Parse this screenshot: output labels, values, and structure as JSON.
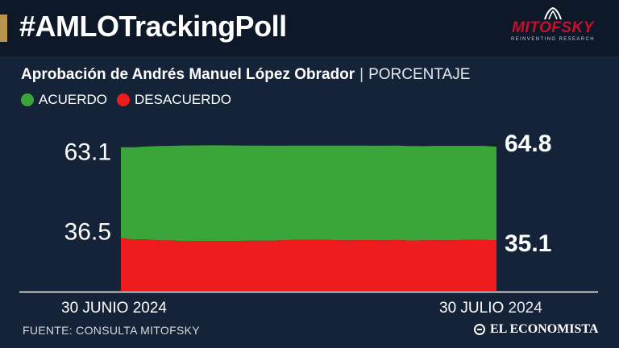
{
  "header": {
    "hashtag": "#AMLOTrackingPoll",
    "logo_word": "MITOFSKY",
    "logo_tagline": "REINVENTING RESEARCH"
  },
  "subtitle": {
    "main": "Aprobación de Andrés Manuel López Obrador",
    "separator": "|",
    "unit": "PORCENTAJE"
  },
  "legend": [
    {
      "label": "ACUERDO",
      "color": "#3aa63a"
    },
    {
      "label": "DESACUERDO",
      "color": "#ee1c1c"
    }
  ],
  "x_axis": {
    "start_label": "30 JUNIO 2024",
    "end_label_bold": "30 JULIO",
    "end_label_year": "2024"
  },
  "footer": {
    "source": "FUENTE: CONSULTA MITOFSKY",
    "brand": "EL ECONOMISTA"
  },
  "colors": {
    "background": "#152338",
    "header_bg": "#0d1828",
    "accent": "#b8944f",
    "approve": "#3aa63a",
    "disapprove": "#ee1c1c"
  },
  "chart_data": {
    "type": "area",
    "stacked": true,
    "x_start": "2024-06-30",
    "x_end": "2024-07-30",
    "ylim": [
      0,
      100
    ],
    "grid": false,
    "legend_position": "top-left",
    "series": [
      {
        "name": "ACUERDO",
        "color": "#3aa63a",
        "values": [
          63.1,
          63.8,
          64.4,
          65.4,
          65.5,
          66.4,
          66.3,
          66.4,
          66.3,
          66.2,
          66.0,
          65.9,
          65.8,
          65.5,
          65.3,
          65.2,
          65.3,
          65.5,
          65.7,
          65.6,
          65.4,
          65.6,
          65.4,
          65.5,
          65.3,
          65.4,
          65.5,
          65.3,
          65.1,
          65.2,
          64.8
        ]
      },
      {
        "name": "DESACUERDO",
        "color": "#ee1c1c",
        "values": [
          36.5,
          35.7,
          35.7,
          35.0,
          35.0,
          34.4,
          34.5,
          34.5,
          34.6,
          34.6,
          34.7,
          34.8,
          34.8,
          35.1,
          35.4,
          35.5,
          35.4,
          35.2,
          35.0,
          35.1,
          35.2,
          35.0,
          35.3,
          34.9,
          35.0,
          35.1,
          35.0,
          35.2,
          35.4,
          35.3,
          35.1
        ]
      }
    ],
    "start_labels": {
      "approve": "63.1",
      "disapprove": "36.5"
    },
    "end_labels": {
      "approve": "64.8",
      "disapprove": "35.1"
    }
  }
}
